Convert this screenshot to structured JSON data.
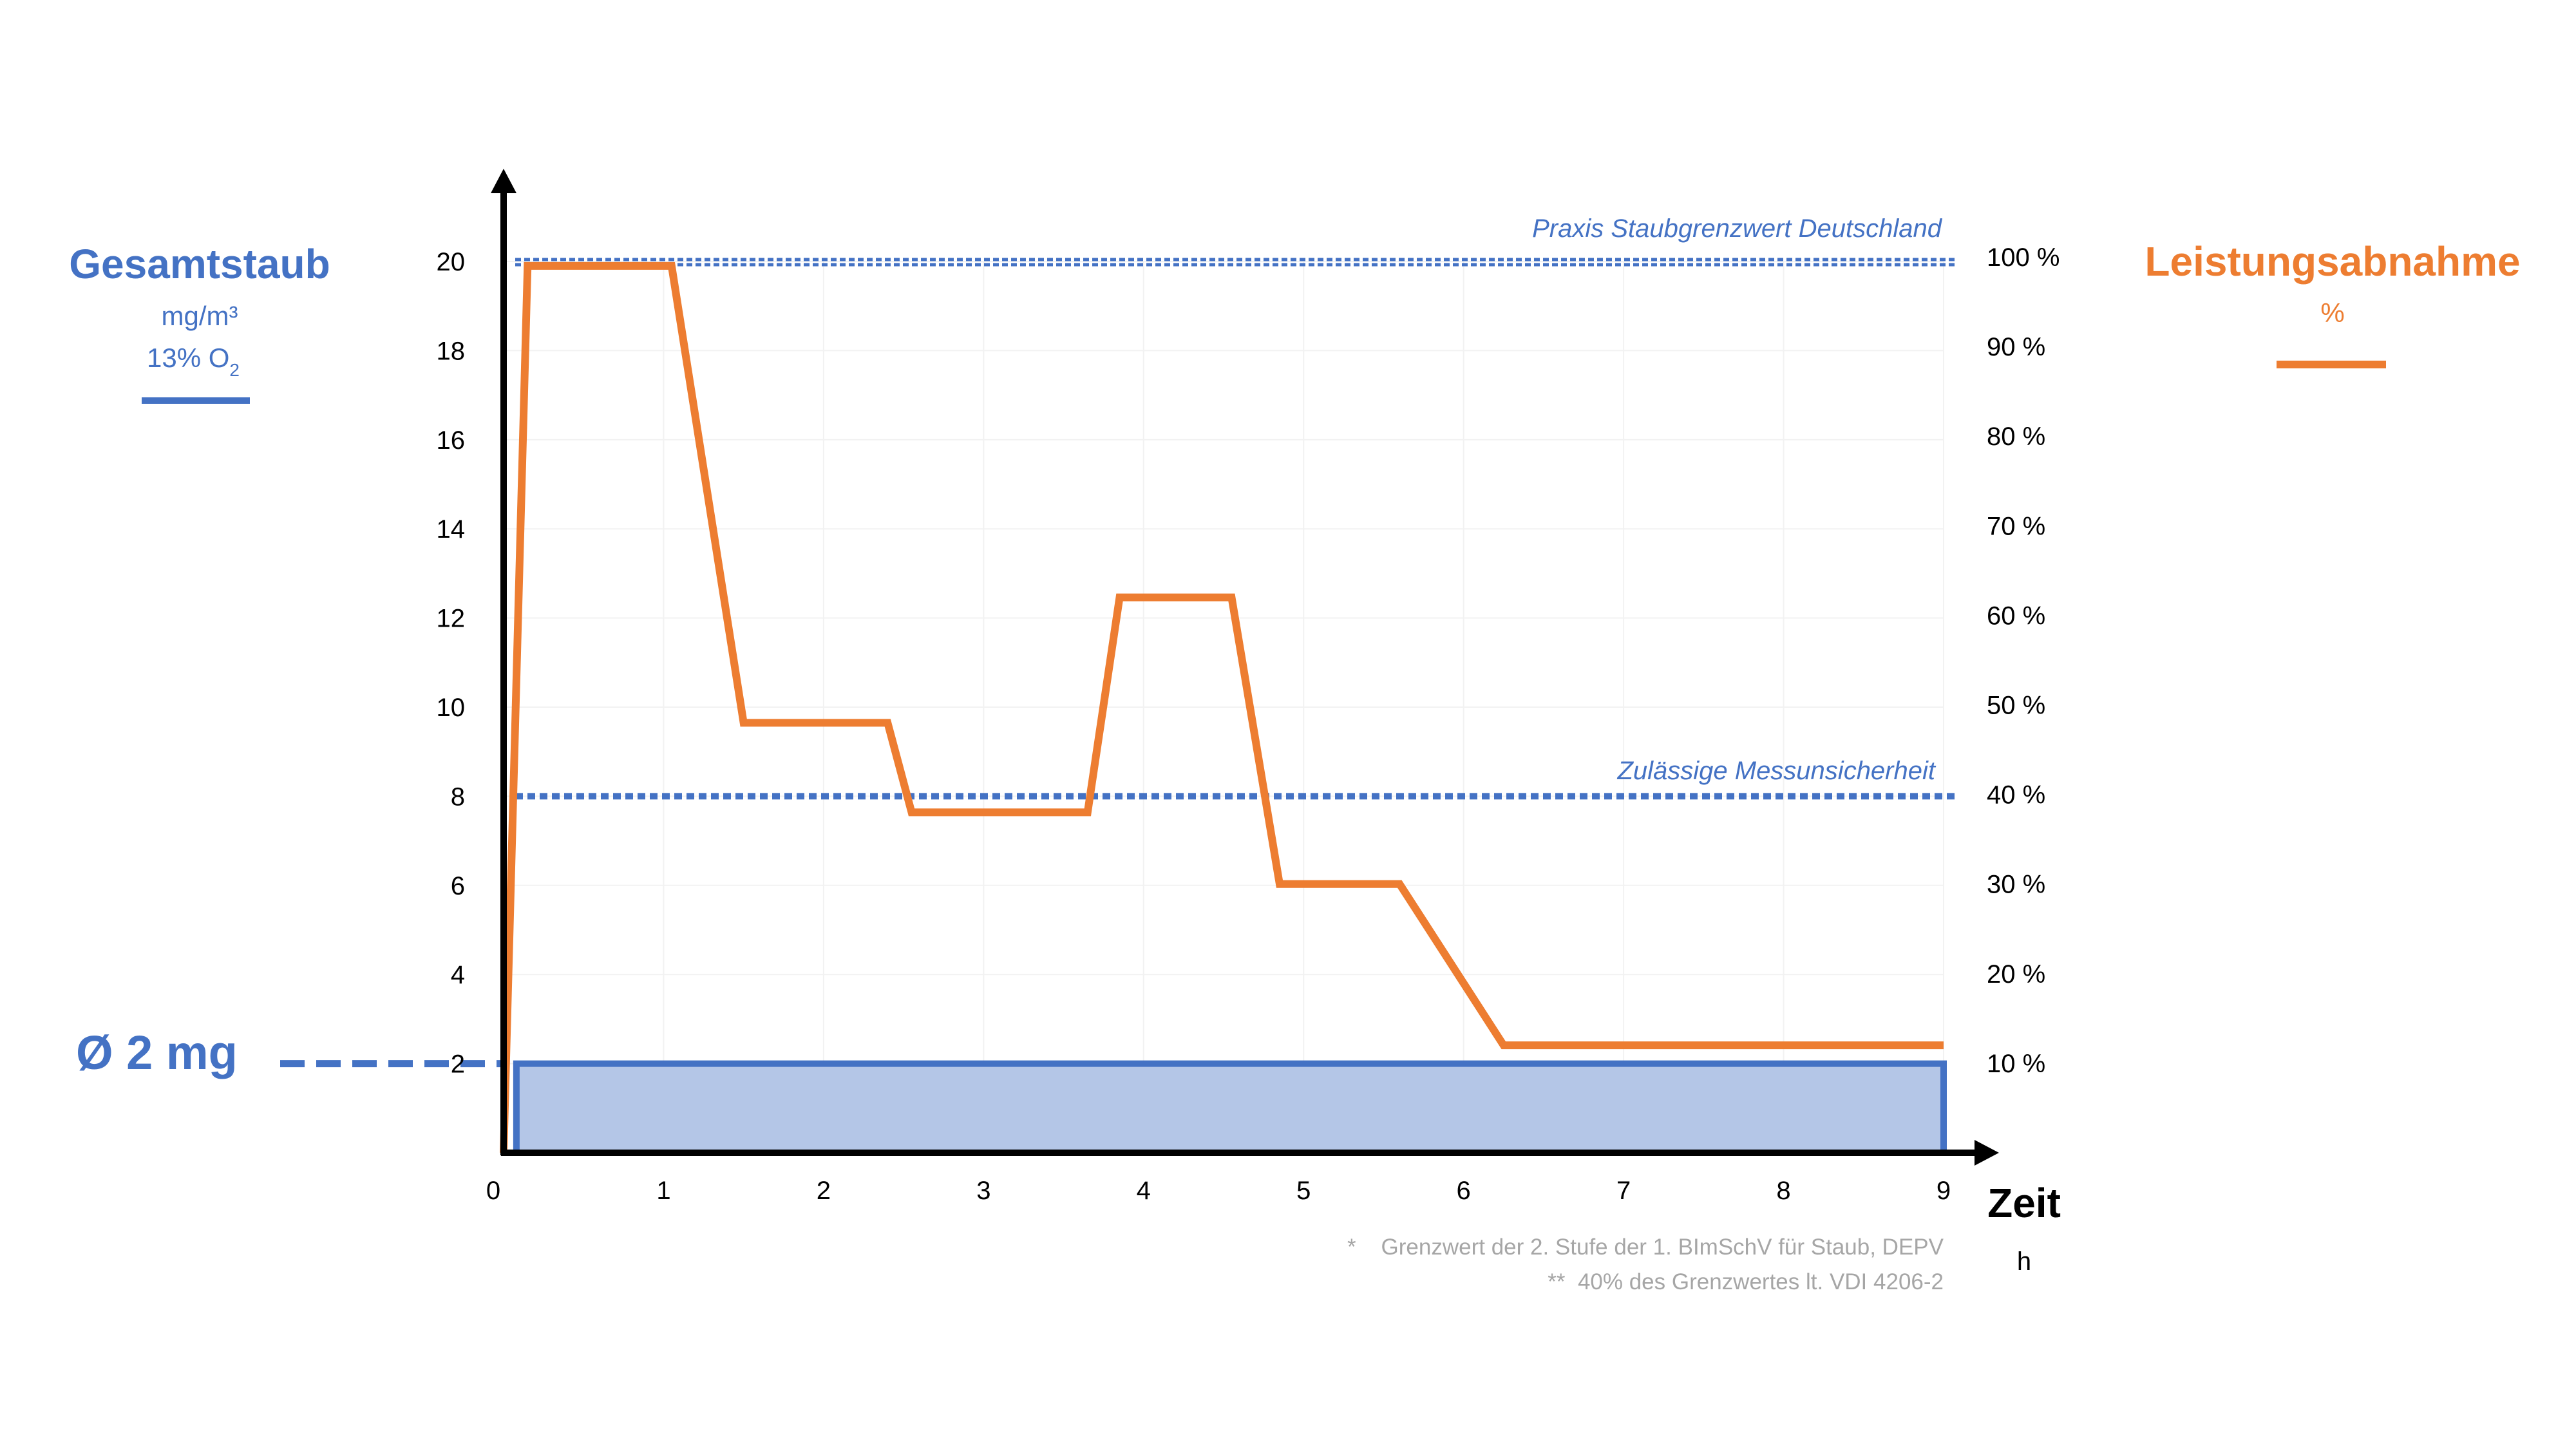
{
  "colors": {
    "dust": "#4472C4",
    "power": "#ED7D31",
    "dust_fill": "#B4C6E7",
    "footnote": "#A6A6A6",
    "grid": "#F2F2F2",
    "axis": "#000000"
  },
  "left_axis": {
    "title": "Gesamtstaub",
    "unit": "mg/m³",
    "unit2_main": "13% O",
    "unit2_sub": "2",
    "ticks": [
      "2",
      "4",
      "6",
      "8",
      "10",
      "12",
      "14",
      "16",
      "18",
      "20"
    ]
  },
  "right_axis": {
    "title": "Leistungsabnahme",
    "unit": "%",
    "ticks": [
      "10 %",
      "20 %",
      "30 %",
      "40 %",
      "50 %",
      "60 %",
      "70 %",
      "80 %",
      "90 %",
      "100 %"
    ]
  },
  "x_axis": {
    "label": "Zeit",
    "unit": "h",
    "ticks": [
      "0",
      "1",
      "2",
      "3",
      "4",
      "5",
      "6",
      "7",
      "8",
      "9"
    ]
  },
  "annotations": {
    "limit_label": "Praxis Staubgrenzwert Deutschland",
    "uncertainty_label": "Zulässige Messunsicherheit",
    "avg_label": "Ø 2 mg"
  },
  "footnotes": [
    "*    Grenzwert der 2. Stufe der 1. BImSchV für Staub, DEPV",
    "**  40% des Grenzwertes lt. VDI 4206-2"
  ],
  "chart_data": {
    "type": "line",
    "xlim": [
      0,
      9
    ],
    "ylim": [
      0,
      20
    ],
    "y2lim": [
      0,
      100
    ],
    "series": [
      {
        "name": "Gesamtstaub",
        "axis": "left",
        "style": "area",
        "x": [
          0,
          0.08,
          0.08,
          9,
          9
        ],
        "y": [
          0,
          0,
          2,
          2,
          0
        ]
      },
      {
        "name": "Leistungsabnahme",
        "axis": "right",
        "style": "line",
        "x": [
          0,
          0.15,
          1.05,
          1.5,
          2.4,
          2.55,
          3.65,
          3.85,
          4.55,
          4.85,
          5.6,
          6.25,
          9
        ],
        "y": [
          0,
          99,
          99,
          48,
          48,
          38,
          38,
          62,
          62,
          30,
          30,
          12,
          12
        ]
      }
    ],
    "reference_lines": [
      {
        "label": "Praxis Staubgrenzwert Deutschland",
        "y": 20
      },
      {
        "label": "Zulässige Messunsicherheit",
        "y": 8
      },
      {
        "label": "Ø 2 mg",
        "y": 2
      }
    ]
  }
}
